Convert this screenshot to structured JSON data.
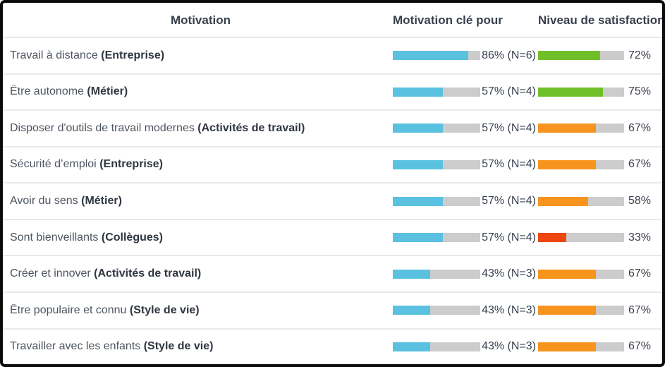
{
  "header": {
    "motivation": "Motivation",
    "key": "Motivation clé pour",
    "satisfaction": "Niveau de satisfaction"
  },
  "colors": {
    "key_bar": "#5ac1e0",
    "track": "#cccccc",
    "green": "#70bf29",
    "orange": "#f7941e",
    "red": "#ee4611",
    "header_text": "#39404d",
    "label_text": "#4d5560",
    "label_bold": "#2f3640",
    "value_text": "#39414f",
    "separator": "#e9e9e9",
    "border": "#0b0b0b"
  },
  "rows": [
    {
      "label": "Travail à distance",
      "category": "(Entreprise)",
      "key_pct": 86,
      "key_text": "86% (N=6)",
      "sat_pct": 72,
      "sat_text": "72%",
      "sat_color": "green"
    },
    {
      "label": "Être autonome",
      "category": "(Métier)",
      "key_pct": 57,
      "key_text": "57% (N=4)",
      "sat_pct": 75,
      "sat_text": "75%",
      "sat_color": "green"
    },
    {
      "label": "Disposer d'outils de travail modernes",
      "category": "(Activités de travail)",
      "key_pct": 57,
      "key_text": "57% (N=4)",
      "sat_pct": 67,
      "sat_text": "67%",
      "sat_color": "orange"
    },
    {
      "label": "Sécurité d’emploi",
      "category": "(Entreprise)",
      "key_pct": 57,
      "key_text": "57% (N=4)",
      "sat_pct": 67,
      "sat_text": "67%",
      "sat_color": "orange"
    },
    {
      "label": "Avoir du sens",
      "category": "(Métier)",
      "key_pct": 57,
      "key_text": "57% (N=4)",
      "sat_pct": 58,
      "sat_text": "58%",
      "sat_color": "orange"
    },
    {
      "label": "Sont bienveillants",
      "category": "(Collègues)",
      "key_pct": 57,
      "key_text": "57% (N=4)",
      "sat_pct": 33,
      "sat_text": "33%",
      "sat_color": "red"
    },
    {
      "label": "Créer et innover",
      "category": "(Activités de travail)",
      "key_pct": 43,
      "key_text": "43% (N=3)",
      "sat_pct": 67,
      "sat_text": "67%",
      "sat_color": "orange"
    },
    {
      "label": "Être populaire et connu",
      "category": "(Style de vie)",
      "key_pct": 43,
      "key_text": "43% (N=3)",
      "sat_pct": 67,
      "sat_text": "67%",
      "sat_color": "orange"
    },
    {
      "label": "Travailler avec les enfants",
      "category": "(Style de vie)",
      "key_pct": 43,
      "key_text": "43% (N=3)",
      "sat_pct": 67,
      "sat_text": "67%",
      "sat_color": "orange"
    }
  ],
  "chart_data": {
    "type": "bar",
    "title": "Motivation",
    "categories": [
      "Travail à distance (Entreprise)",
      "Être autonome (Métier)",
      "Disposer d'outils de travail modernes (Activités de travail)",
      "Sécurité d’emploi (Entreprise)",
      "Avoir du sens (Métier)",
      "Sont bienveillants (Collègues)",
      "Créer et innover (Activités de travail)",
      "Être populaire et connu (Style de vie)",
      "Travailler avec les enfants (Style de vie)"
    ],
    "series": [
      {
        "name": "Motivation clé pour",
        "unit": "%",
        "values": [
          86,
          57,
          57,
          57,
          57,
          57,
          43,
          43,
          43
        ],
        "n": [
          6,
          4,
          4,
          4,
          4,
          4,
          3,
          3,
          3
        ],
        "color": "#5ac1e0"
      },
      {
        "name": "Niveau de satisfaction",
        "unit": "%",
        "values": [
          72,
          75,
          67,
          67,
          58,
          33,
          67,
          67,
          67
        ],
        "colors": [
          "#70bf29",
          "#70bf29",
          "#f7941e",
          "#f7941e",
          "#f7941e",
          "#ee4611",
          "#f7941e",
          "#f7941e",
          "#f7941e"
        ]
      }
    ],
    "xlim": [
      0,
      100
    ],
    "grid": false,
    "legend_position": "column-headers",
    "orientation": "horizontal"
  }
}
